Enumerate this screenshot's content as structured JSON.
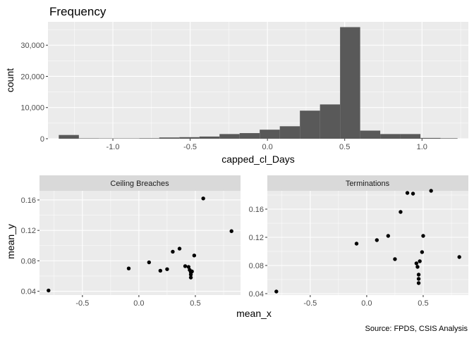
{
  "chart_data": [
    {
      "type": "bar",
      "title": "Frequency",
      "xlabel": "capped_cl_Days",
      "ylabel": "count",
      "xlim": [
        -1.42,
        1.3
      ],
      "ylim": [
        0,
        37500
      ],
      "x_ticks": [
        -1.0,
        -0.5,
        0.0,
        0.5,
        1.0
      ],
      "x_tick_labels": [
        "-1.0",
        "-0.5",
        "0.0",
        "0.5",
        "1.0"
      ],
      "y_ticks": [
        0,
        10000,
        20000,
        30000
      ],
      "y_tick_labels": [
        "0",
        "10,000",
        "20,000",
        "30,000"
      ],
      "bin_width": 0.13,
      "bins": [
        {
          "x0": -1.35,
          "x1": -1.22,
          "count": 1200
        },
        {
          "x0": -1.22,
          "x1": -1.09,
          "count": 120
        },
        {
          "x0": -1.09,
          "x1": -0.96,
          "count": 100
        },
        {
          "x0": -0.96,
          "x1": -0.83,
          "count": 100
        },
        {
          "x0": -0.83,
          "x1": -0.7,
          "count": 150
        },
        {
          "x0": -0.7,
          "x1": -0.57,
          "count": 400
        },
        {
          "x0": -0.57,
          "x1": -0.44,
          "count": 500
        },
        {
          "x0": -0.44,
          "x1": -0.31,
          "count": 700
        },
        {
          "x0": -0.31,
          "x1": -0.18,
          "count": 1500
        },
        {
          "x0": -0.18,
          "x1": -0.05,
          "count": 1800
        },
        {
          "x0": -0.05,
          "x1": 0.08,
          "count": 2900
        },
        {
          "x0": 0.08,
          "x1": 0.21,
          "count": 4000
        },
        {
          "x0": 0.21,
          "x1": 0.34,
          "count": 9000
        },
        {
          "x0": 0.34,
          "x1": 0.47,
          "count": 11000
        },
        {
          "x0": 0.47,
          "x1": 0.6,
          "count": 35800
        },
        {
          "x0": 0.6,
          "x1": 0.73,
          "count": 2600
        },
        {
          "x0": 0.73,
          "x1": 0.86,
          "count": 1500
        },
        {
          "x0": 0.86,
          "x1": 0.99,
          "count": 1500
        },
        {
          "x0": 0.99,
          "x1": 1.12,
          "count": 250
        },
        {
          "x0": 1.12,
          "x1": 1.23,
          "count": 150
        }
      ],
      "bar_color": "#595959"
    },
    {
      "type": "scatter",
      "panel": "Ceiling Breaches",
      "xlabel": "mean_x",
      "ylabel": "mean_y",
      "xlim": [
        -0.88,
        0.9
      ],
      "ylim": [
        0.035,
        0.172
      ],
      "x_ticks": [
        -0.5,
        0.0,
        0.5
      ],
      "x_tick_labels": [
        "-0.5",
        "0.0",
        "0.5"
      ],
      "y_ticks": [
        0.04,
        0.08,
        0.12,
        0.16
      ],
      "y_tick_labels": [
        "0.04",
        "0.08",
        "0.12",
        "0.16"
      ],
      "points": [
        {
          "x": -0.8,
          "y": 0.041
        },
        {
          "x": -0.09,
          "y": 0.07
        },
        {
          "x": 0.09,
          "y": 0.078
        },
        {
          "x": 0.19,
          "y": 0.067
        },
        {
          "x": 0.25,
          "y": 0.069
        },
        {
          "x": 0.3,
          "y": 0.092
        },
        {
          "x": 0.36,
          "y": 0.096
        },
        {
          "x": 0.41,
          "y": 0.073
        },
        {
          "x": 0.44,
          "y": 0.072
        },
        {
          "x": 0.45,
          "y": 0.068
        },
        {
          "x": 0.46,
          "y": 0.065
        },
        {
          "x": 0.46,
          "y": 0.062
        },
        {
          "x": 0.46,
          "y": 0.058
        },
        {
          "x": 0.47,
          "y": 0.066
        },
        {
          "x": 0.49,
          "y": 0.087
        },
        {
          "x": 0.57,
          "y": 0.162
        },
        {
          "x": 0.82,
          "y": 0.119
        }
      ]
    },
    {
      "type": "scatter",
      "panel": "Terminations",
      "xlabel": "mean_x",
      "ylabel": "mean_y",
      "xlim": [
        -0.88,
        0.9
      ],
      "ylim": [
        0.038,
        0.186
      ],
      "x_ticks": [
        -0.5,
        0.0,
        0.5
      ],
      "x_tick_labels": [
        "-0.5",
        "0.0",
        "0.5"
      ],
      "y_ticks": [
        0.04,
        0.08,
        0.12,
        0.16
      ],
      "y_tick_labels": [
        "0.04",
        "0.08",
        "0.12",
        "0.16"
      ],
      "points": [
        {
          "x": -0.8,
          "y": 0.043
        },
        {
          "x": -0.09,
          "y": 0.111
        },
        {
          "x": 0.09,
          "y": 0.116
        },
        {
          "x": 0.19,
          "y": 0.122
        },
        {
          "x": 0.25,
          "y": 0.089
        },
        {
          "x": 0.3,
          "y": 0.156
        },
        {
          "x": 0.36,
          "y": 0.183
        },
        {
          "x": 0.41,
          "y": 0.182
        },
        {
          "x": 0.44,
          "y": 0.083
        },
        {
          "x": 0.45,
          "y": 0.078
        },
        {
          "x": 0.46,
          "y": 0.067
        },
        {
          "x": 0.46,
          "y": 0.061
        },
        {
          "x": 0.46,
          "y": 0.055
        },
        {
          "x": 0.47,
          "y": 0.086
        },
        {
          "x": 0.49,
          "y": 0.099
        },
        {
          "x": 0.5,
          "y": 0.122
        },
        {
          "x": 0.57,
          "y": 0.186
        },
        {
          "x": 0.82,
          "y": 0.092
        }
      ]
    }
  ],
  "caption": "Source: FPDS, CSIS Analysis",
  "colors": {
    "panel_background": "#ebebeb",
    "grid_major": "#ffffff",
    "strip_background": "#d9d9d9",
    "point_color": "#000000"
  }
}
